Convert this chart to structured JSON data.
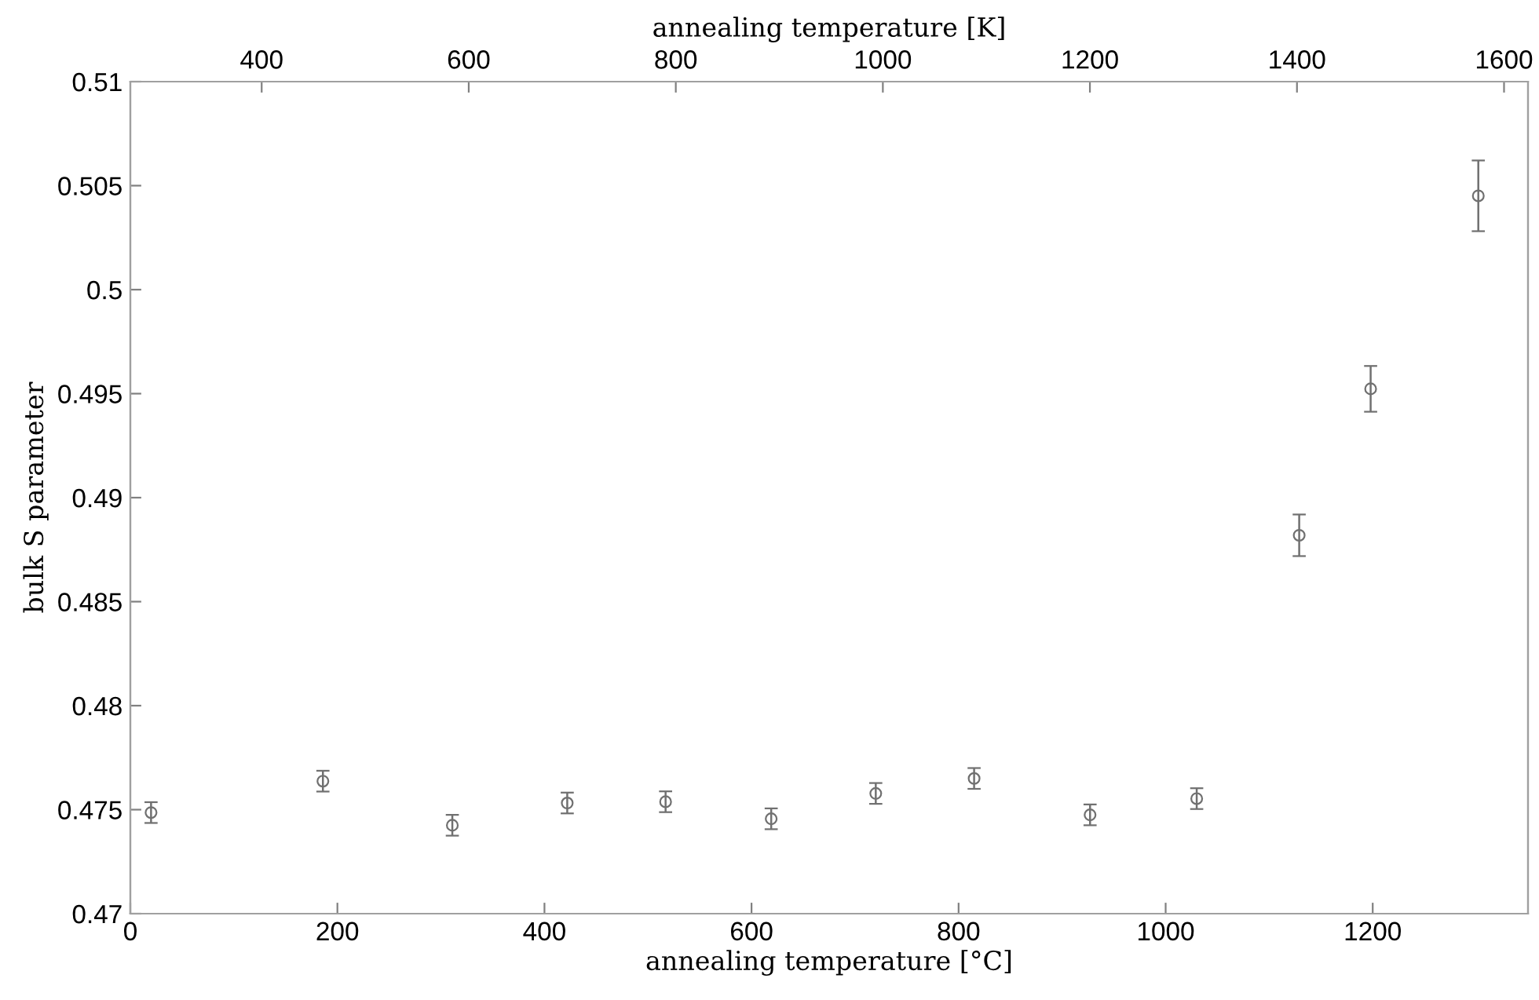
{
  "chart_data": {
    "type": "scatter",
    "xlabel": "annealing temperature [°C]",
    "x2label": "annealing temperature [K]",
    "ylabel": "bulk S parameter",
    "x": [
      20,
      186,
      311,
      422,
      517,
      619,
      720,
      815,
      927,
      1030,
      1129,
      1198,
      1302
    ],
    "series": [
      {
        "color": "#707070",
        "values": [
          0.47486,
          0.47637,
          0.47425,
          0.47532,
          0.47538,
          0.47456,
          0.47578,
          0.4765,
          0.47475,
          0.47553,
          0.48819,
          0.49523,
          0.50451
        ],
        "errors": [
          0.0005,
          0.0005,
          0.0005,
          0.0005,
          0.0005,
          0.0005,
          0.0005,
          0.0005,
          0.0005,
          0.0005,
          0.001,
          0.0011,
          0.0017
        ]
      }
    ],
    "marker": "circle",
    "grid": false,
    "legend": false,
    "xlim": [
      0,
      1350
    ],
    "xticks": [
      0,
      200,
      400,
      600,
      800,
      1000,
      1200
    ],
    "x2lim": [
      273.15,
      1623.15
    ],
    "x2ticks": [
      400,
      600,
      800,
      1000,
      1200,
      1400,
      1600
    ],
    "ylim": [
      0.47,
      0.51
    ],
    "yticks": [
      0.47,
      0.475,
      0.48,
      0.485,
      0.49,
      0.495,
      0.5,
      0.505,
      0.51
    ]
  }
}
